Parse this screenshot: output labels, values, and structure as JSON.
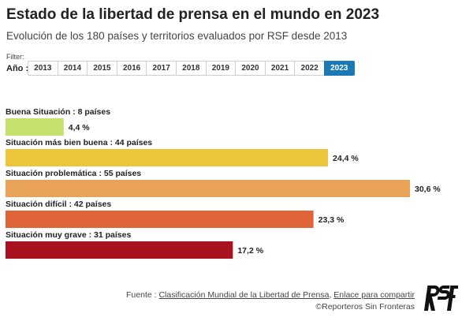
{
  "title": "Estado de la libertad de prensa en el mundo en 2023",
  "subtitle": "Evolución de los 180 países y territorios evaluados por RSF desde 2013",
  "filter": {
    "label": "Filter:",
    "year_label": "Año :",
    "years": [
      "2013",
      "2014",
      "2015",
      "2016",
      "2017",
      "2018",
      "2019",
      "2020",
      "2021",
      "2022",
      "2023"
    ],
    "selected": "2023"
  },
  "chart_data": {
    "type": "bar",
    "orientation": "horizontal",
    "categories": [
      "Buena Situación : 8 países",
      "Situación más bien buena : 44 países",
      "Situación problemática : 55 países",
      "Situación difícil : 42 países",
      "Situación muy grave : 31 países"
    ],
    "values": [
      4.4,
      24.4,
      30.6,
      23.3,
      17.2
    ],
    "value_labels": [
      "4,4 %",
      "24,4 %",
      "30,6 %",
      "23,3 %",
      "17,2 %"
    ],
    "colors": [
      "#c5e26c",
      "#ecc63a",
      "#e9a359",
      "#df6438",
      "#a8131f"
    ],
    "xlim": [
      0,
      30.6
    ]
  },
  "footer": {
    "source_prefix": "Fuente :",
    "source_link": "Clasificación Mundial de la Libertad de Prensa",
    "separator": ",",
    "share_link": "Enlace para compartir",
    "credit": "©Reporteros Sin Fronteras"
  },
  "logo": {
    "text": "RSF",
    "icon": "rsf-logo"
  }
}
